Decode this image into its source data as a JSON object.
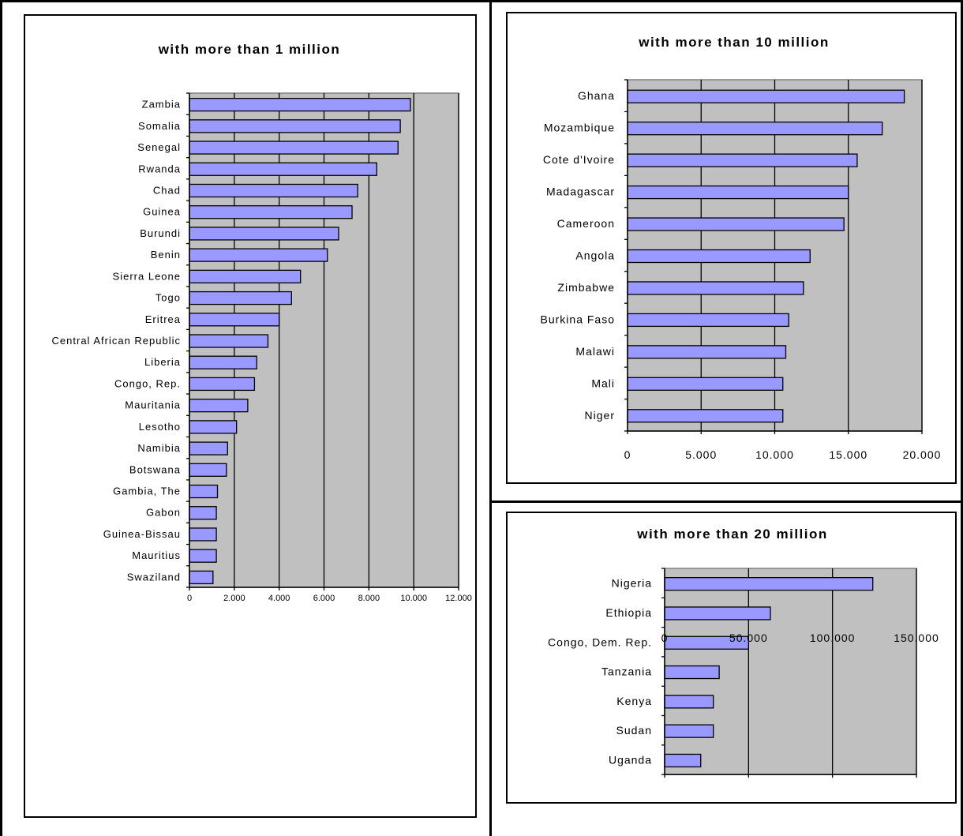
{
  "chart_data": [
    {
      "type": "bar",
      "orientation": "horizontal",
      "title": "with more than 1 million",
      "categories": [
        "Zambia",
        "Somalia",
        "Senegal",
        "Rwanda",
        "Chad",
        "Guinea",
        "Burundi",
        "Benin",
        "Sierra Leone",
        "Togo",
        "Eritrea",
        "Central African Republic",
        "Liberia",
        "Congo, Rep.",
        "Mauritania",
        "Lesotho",
        "Namibia",
        "Botswana",
        "Gambia, The",
        "Gabon",
        "Guinea-Bissau",
        "Mauritius",
        "Swaziland"
      ],
      "values": [
        9850,
        9400,
        9300,
        8350,
        7500,
        7250,
        6650,
        6150,
        4950,
        4550,
        4000,
        3500,
        3000,
        2900,
        2600,
        2100,
        1700,
        1650,
        1250,
        1200,
        1200,
        1200,
        1050
      ],
      "xlim": [
        0,
        12000
      ],
      "xticks": [
        "0",
        "2.000",
        "4.000",
        "6.000",
        "8.000",
        "10.000",
        "12.000"
      ],
      "grid": true,
      "bar_color": "#9999ff",
      "plot_background": "#c0c0c0"
    },
    {
      "type": "bar",
      "orientation": "horizontal",
      "title": "with more than 10 million",
      "categories": [
        "Ghana",
        "Mozambique",
        "Cote d'Ivoire",
        "Madagascar",
        "Cameroon",
        "Angola",
        "Zimbabwe",
        "Burkina Faso",
        "Malawi",
        "Mali",
        "Niger"
      ],
      "values": [
        18800,
        17300,
        15600,
        15000,
        14700,
        12400,
        11950,
        10950,
        10750,
        10550,
        10550
      ],
      "xlim": [
        0,
        20000
      ],
      "xticks": [
        "0",
        "5.000",
        "10.000",
        "15.000",
        "20.000"
      ],
      "grid": true,
      "bar_color": "#9999ff",
      "plot_background": "#c0c0c0"
    },
    {
      "type": "bar",
      "orientation": "horizontal",
      "title": "with more than 20 million",
      "categories": [
        "Nigeria",
        "Ethiopia",
        "Congo, Dem. Rep.",
        "Tanzania",
        "Kenya",
        "Sudan",
        "Uganda"
      ],
      "values": [
        124000,
        63000,
        50000,
        32500,
        29000,
        29000,
        21500
      ],
      "xlim": [
        0,
        150000
      ],
      "xticks": [
        "0",
        "50.000",
        "100.000",
        "150.000"
      ],
      "grid": true,
      "bar_color": "#9999ff",
      "plot_background": "#c0c0c0"
    }
  ]
}
